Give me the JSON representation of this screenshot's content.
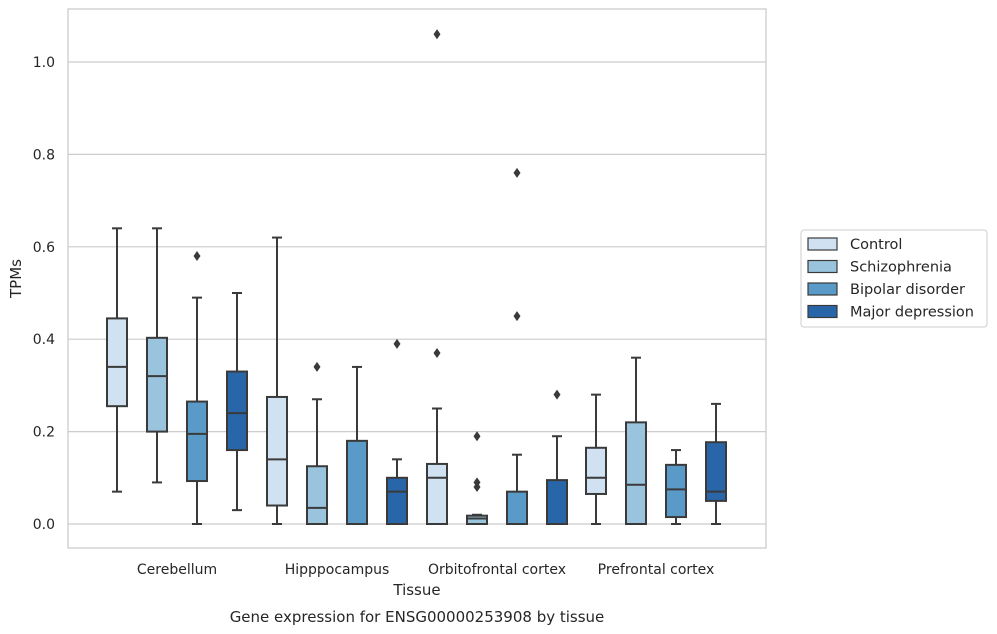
{
  "caption": "Gene expression for ENSG00000253908 by tissue",
  "chart_data": {
    "type": "box",
    "title": "",
    "xlabel": "Tissue",
    "ylabel": "TPMs",
    "ylim": [
      -0.05,
      1.115
    ],
    "yticks": [
      0.0,
      0.2,
      0.4,
      0.6,
      0.8,
      1.0
    ],
    "ytick_labels": [
      "0.0",
      "0.2",
      "0.4",
      "0.6",
      "0.8",
      "1.0"
    ],
    "grid": "horizontal",
    "legend_position": "right",
    "categories": [
      "Cerebellum",
      "Hipppocampus",
      "Orbitofrontal cortex",
      "Prefrontal cortex"
    ],
    "series": [
      {
        "name": "Control",
        "color": "#d0e2f2",
        "boxes": [
          {
            "whisker_low": 0.07,
            "q1": 0.255,
            "median": 0.34,
            "q3": 0.445,
            "whisker_high": 0.64,
            "outliers": []
          },
          {
            "whisker_low": 0.0,
            "q1": 0.04,
            "median": 0.14,
            "q3": 0.275,
            "whisker_high": 0.62,
            "outliers": []
          },
          {
            "whisker_low": 0.0,
            "q1": 0.0,
            "median": 0.1,
            "q3": 0.13,
            "whisker_high": 0.25,
            "outliers": [
              0.37,
              1.06
            ]
          },
          {
            "whisker_low": 0.0,
            "q1": 0.065,
            "median": 0.1,
            "q3": 0.165,
            "whisker_high": 0.28,
            "outliers": []
          }
        ]
      },
      {
        "name": "Schizophrenia",
        "color": "#9ac4de",
        "boxes": [
          {
            "whisker_low": 0.09,
            "q1": 0.2,
            "median": 0.32,
            "q3": 0.403,
            "whisker_high": 0.64,
            "outliers": []
          },
          {
            "whisker_low": 0.0,
            "q1": 0.0,
            "median": 0.035,
            "q3": 0.125,
            "whisker_high": 0.27,
            "outliers": [
              0.34
            ]
          },
          {
            "whisker_low": 0.0,
            "q1": 0.0,
            "median": 0.012,
            "q3": 0.018,
            "whisker_high": 0.02,
            "outliers": [
              0.08,
              0.09,
              0.19
            ]
          },
          {
            "whisker_low": 0.0,
            "q1": 0.0,
            "median": 0.085,
            "q3": 0.22,
            "whisker_high": 0.36,
            "outliers": []
          }
        ]
      },
      {
        "name": "Bipolar disorder",
        "color": "#5a9ac9",
        "boxes": [
          {
            "whisker_low": 0.0,
            "q1": 0.093,
            "median": 0.195,
            "q3": 0.265,
            "whisker_high": 0.49,
            "outliers": [
              0.58
            ]
          },
          {
            "whisker_low": 0.0,
            "q1": 0.0,
            "median": 0.0,
            "q3": 0.18,
            "whisker_high": 0.34,
            "outliers": []
          },
          {
            "whisker_low": 0.0,
            "q1": 0.0,
            "median": 0.0,
            "q3": 0.07,
            "whisker_high": 0.15,
            "outliers": [
              0.45,
              0.76
            ]
          },
          {
            "whisker_low": 0.0,
            "q1": 0.015,
            "median": 0.075,
            "q3": 0.128,
            "whisker_high": 0.16,
            "outliers": []
          }
        ]
      },
      {
        "name": "Major depression",
        "color": "#2866a9",
        "boxes": [
          {
            "whisker_low": 0.03,
            "q1": 0.16,
            "median": 0.24,
            "q3": 0.33,
            "whisker_high": 0.5,
            "outliers": []
          },
          {
            "whisker_low": 0.0,
            "q1": 0.0,
            "median": 0.07,
            "q3": 0.1,
            "whisker_high": 0.14,
            "outliers": [
              0.39
            ]
          },
          {
            "whisker_low": 0.0,
            "q1": 0.0,
            "median": 0.0,
            "q3": 0.095,
            "whisker_high": 0.19,
            "outliers": [
              0.28
            ]
          },
          {
            "whisker_low": 0.0,
            "q1": 0.05,
            "median": 0.07,
            "q3": 0.177,
            "whisker_high": 0.26,
            "outliers": []
          }
        ]
      }
    ]
  }
}
